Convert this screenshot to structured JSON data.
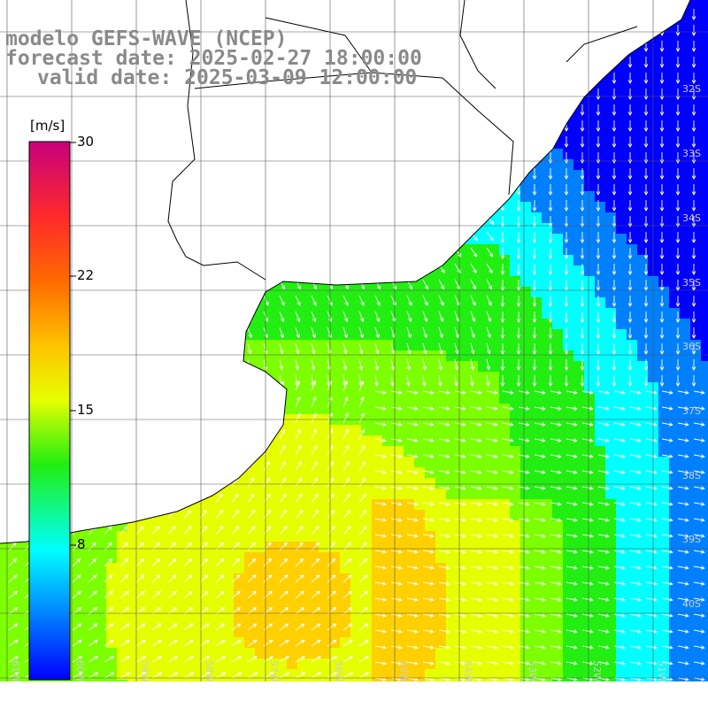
{
  "title": {
    "line1": "modelo GEFS-WAVE (NCEP)",
    "line2": "forecast date: 2025-02-27 18:00:00",
    "line3": "valid date: 2025-03-09 12:00:00"
  },
  "colorbar": {
    "unit": "[m/s]",
    "ticks": [
      "30",
      "22",
      "15",
      "8"
    ],
    "range": [
      0,
      30
    ]
  },
  "lat_labels": [
    "32S",
    "33S",
    "34S",
    "35S",
    "36S",
    "37S",
    "38S",
    "39S",
    "40S"
  ],
  "lon_labels": [
    "61W",
    "60W",
    "59W",
    "58W",
    "57W",
    "56W",
    "55W",
    "54W",
    "53W",
    "52W",
    "51W"
  ]
}
